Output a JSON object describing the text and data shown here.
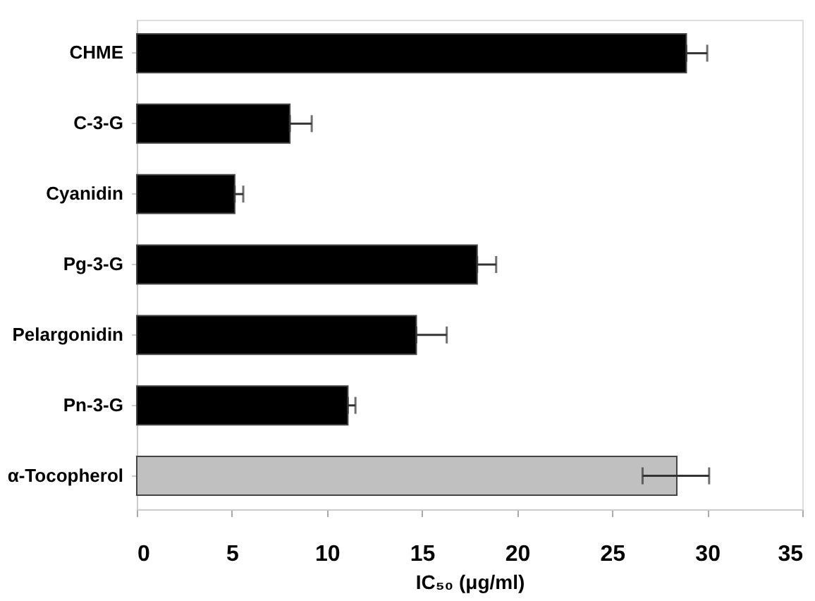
{
  "chart_data": {
    "type": "bar",
    "orientation": "horizontal",
    "xlabel": "IC₅₀ (μg/ml)",
    "categories": [
      "CHME",
      "C-3-G",
      "Cyanidin",
      "Pg-3-G",
      "Pelargonidin",
      "Pn-3-G",
      "α-Tocopherol"
    ],
    "values": [
      28.9,
      8.05,
      5.15,
      17.9,
      14.7,
      11.1,
      28.4
    ],
    "colors": [
      "#000000",
      "#000000",
      "#000000",
      "#000000",
      "#000000",
      "#000000",
      "#c0c0c0"
    ],
    "errors": [
      [
        28.9,
        30.0
      ],
      [
        8.05,
        9.2
      ],
      [
        5.15,
        5.6
      ],
      [
        17.9,
        18.9
      ],
      [
        14.7,
        16.3
      ],
      [
        11.1,
        11.5
      ],
      [
        26.6,
        30.1
      ]
    ],
    "xlim": [
      0,
      35
    ],
    "xticks": [
      0,
      5,
      10,
      15,
      20,
      25,
      30,
      35
    ],
    "grid": false
  }
}
